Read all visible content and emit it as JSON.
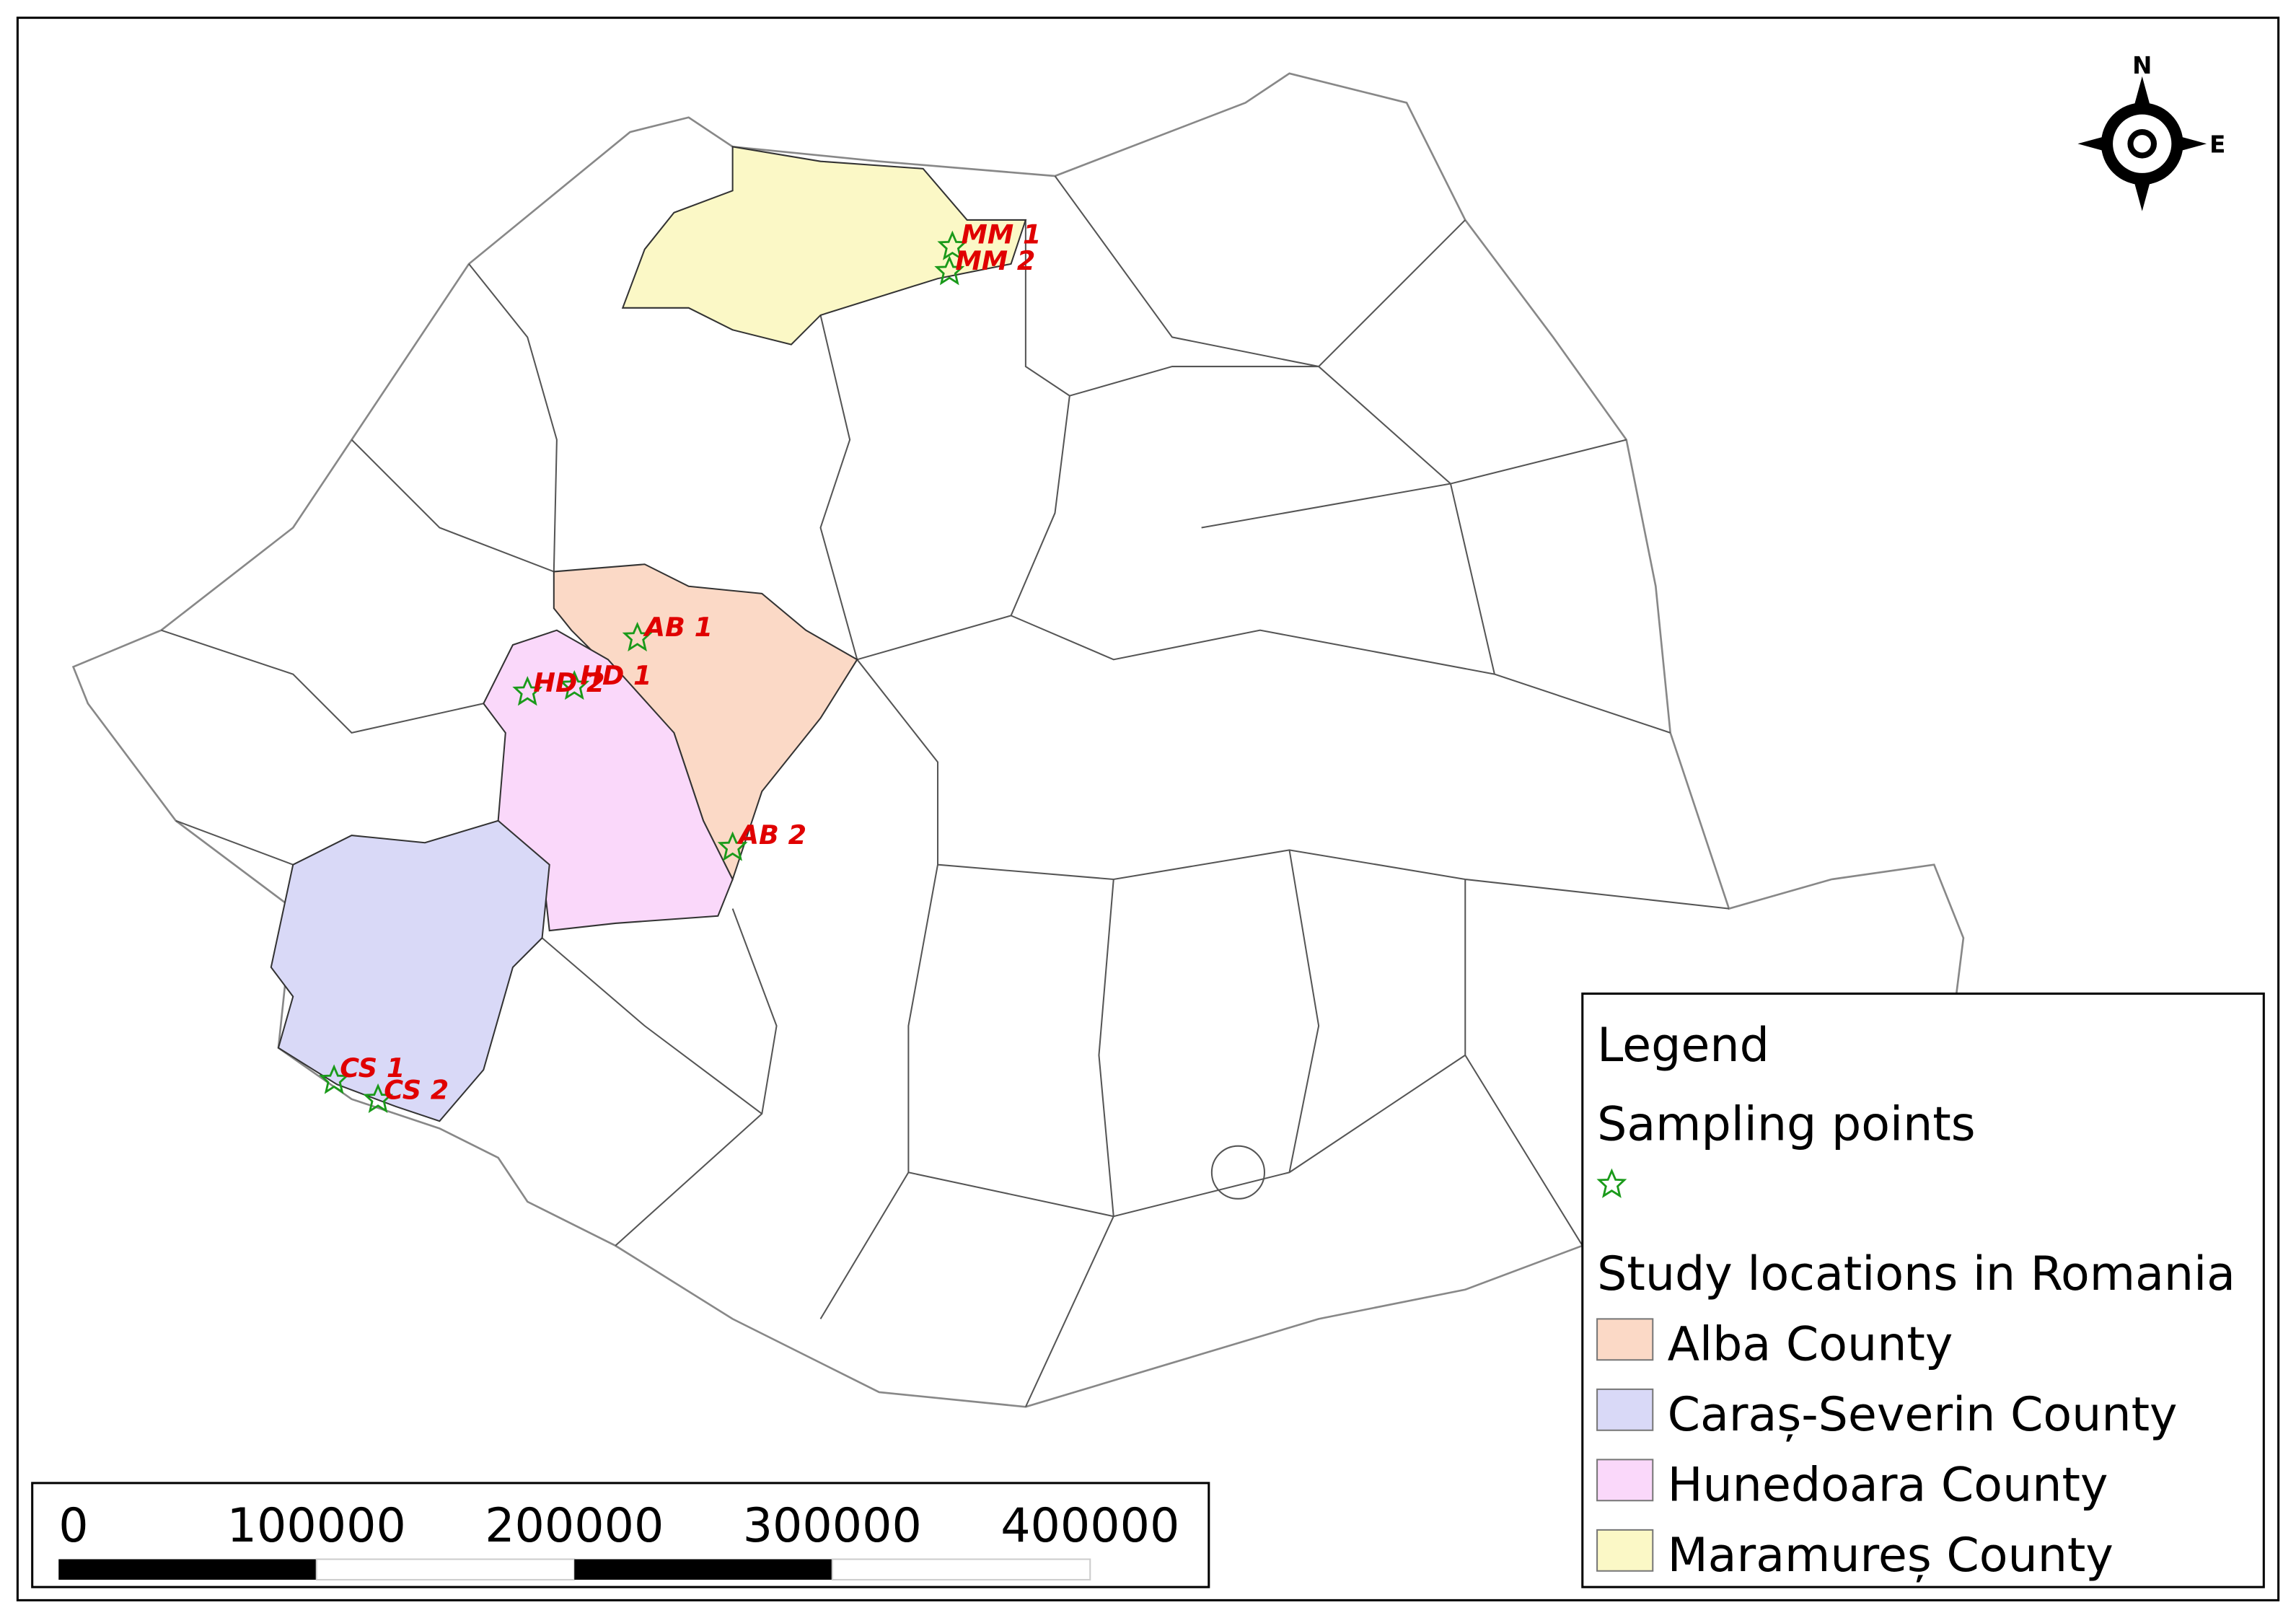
{
  "compass": {
    "north": "N",
    "east": "E"
  },
  "sampling_points": [
    {
      "label": "MM 1"
    },
    {
      "label": "MM 2"
    },
    {
      "label": "AB 1"
    },
    {
      "label": "HD 1"
    },
    {
      "label": "HD 2"
    },
    {
      "label": "AB 2"
    },
    {
      "label": "CS 1"
    },
    {
      "label": "CS 2"
    }
  ],
  "legend": {
    "title": "Legend",
    "sections": [
      {
        "title": "Sampling points"
      },
      {
        "title": "Study locations in Romania",
        "items": [
          {
            "label": "Alba County",
            "color": "#fbd9c6"
          },
          {
            "label": "Caraș-Severin County",
            "color": "#d9d9f7"
          },
          {
            "label": "Hunedoara County",
            "color": "#fad8fa"
          },
          {
            "label": "Maramureș County",
            "color": "#fbf8c6"
          }
        ]
      }
    ]
  },
  "scale_bar": {
    "labels": [
      0,
      100000,
      200000,
      300000,
      400000
    ]
  }
}
